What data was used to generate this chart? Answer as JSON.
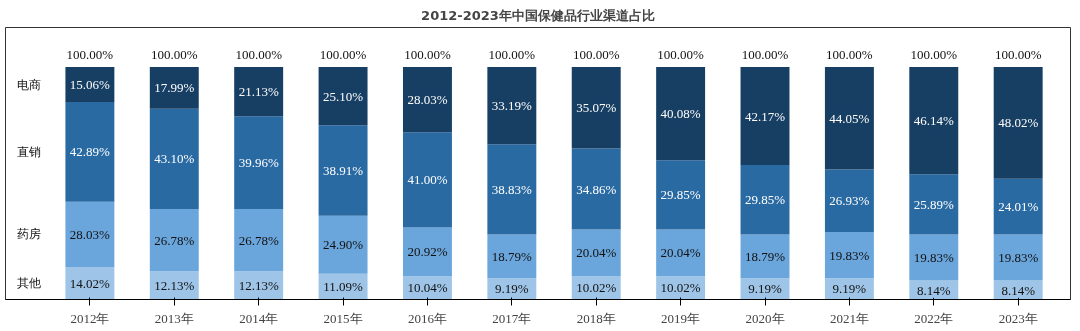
{
  "chart_data": {
    "type": "bar",
    "stacked": true,
    "title": "2012-2023年中国保健品行业渠道占比",
    "categories": [
      "2012年",
      "2013年",
      "2014年",
      "2015年",
      "2016年",
      "2017年",
      "2018年",
      "2019年",
      "2020年",
      "2021年",
      "2022年",
      "2023年"
    ],
    "series": [
      {
        "name": "其他",
        "color": "#9ec5e8",
        "values": [
          14.02,
          12.13,
          12.13,
          11.09,
          10.04,
          9.19,
          10.02,
          10.02,
          9.19,
          9.19,
          8.14,
          8.14
        ],
        "value_labels": [
          "14.02%",
          "12.13%",
          "12.13%",
          "11.09%",
          "10.04%",
          "9.19%",
          "10.02%",
          "10.02%",
          "9.19%",
          "9.19%",
          "8.14%",
          "8.14%"
        ]
      },
      {
        "name": "药房",
        "color": "#6aa6dc",
        "values": [
          28.03,
          26.78,
          26.78,
          24.9,
          20.92,
          18.79,
          20.04,
          20.04,
          18.79,
          19.83,
          19.83,
          19.83
        ],
        "value_labels": [
          "28.03%",
          "26.78%",
          "26.78%",
          "24.90%",
          "20.92%",
          "18.79%",
          "20.04%",
          "20.04%",
          "18.79%",
          "19.83%",
          "19.83%",
          "19.83%"
        ]
      },
      {
        "name": "直销",
        "color": "#2a6aa3",
        "values": [
          42.89,
          43.1,
          39.96,
          38.91,
          41.0,
          38.83,
          34.86,
          29.85,
          29.85,
          26.93,
          25.89,
          24.01
        ],
        "value_labels": [
          "42.89%",
          "43.10%",
          "39.96%",
          "38.91%",
          "41.00%",
          "38.83%",
          "34.86%",
          "29.85%",
          "29.85%",
          "26.93%",
          "25.89%",
          "24.01%"
        ]
      },
      {
        "name": "电商",
        "color": "#173e63",
        "values": [
          15.06,
          17.99,
          21.13,
          25.1,
          28.03,
          33.19,
          35.07,
          40.08,
          42.17,
          44.05,
          46.14,
          48.02
        ],
        "value_labels": [
          "15.06%",
          "17.99%",
          "21.13%",
          "25.10%",
          "28.03%",
          "33.19%",
          "35.07%",
          "40.08%",
          "42.17%",
          "44.05%",
          "46.14%",
          "48.02%"
        ]
      }
    ],
    "totals": [
      "100.00%",
      "100.00%",
      "100.00%",
      "100.00%",
      "100.00%",
      "100.00%",
      "100.00%",
      "100.00%",
      "100.00%",
      "100.00%",
      "100.00%",
      "100.00%"
    ],
    "grid": false,
    "tick_labels": "x"
  }
}
